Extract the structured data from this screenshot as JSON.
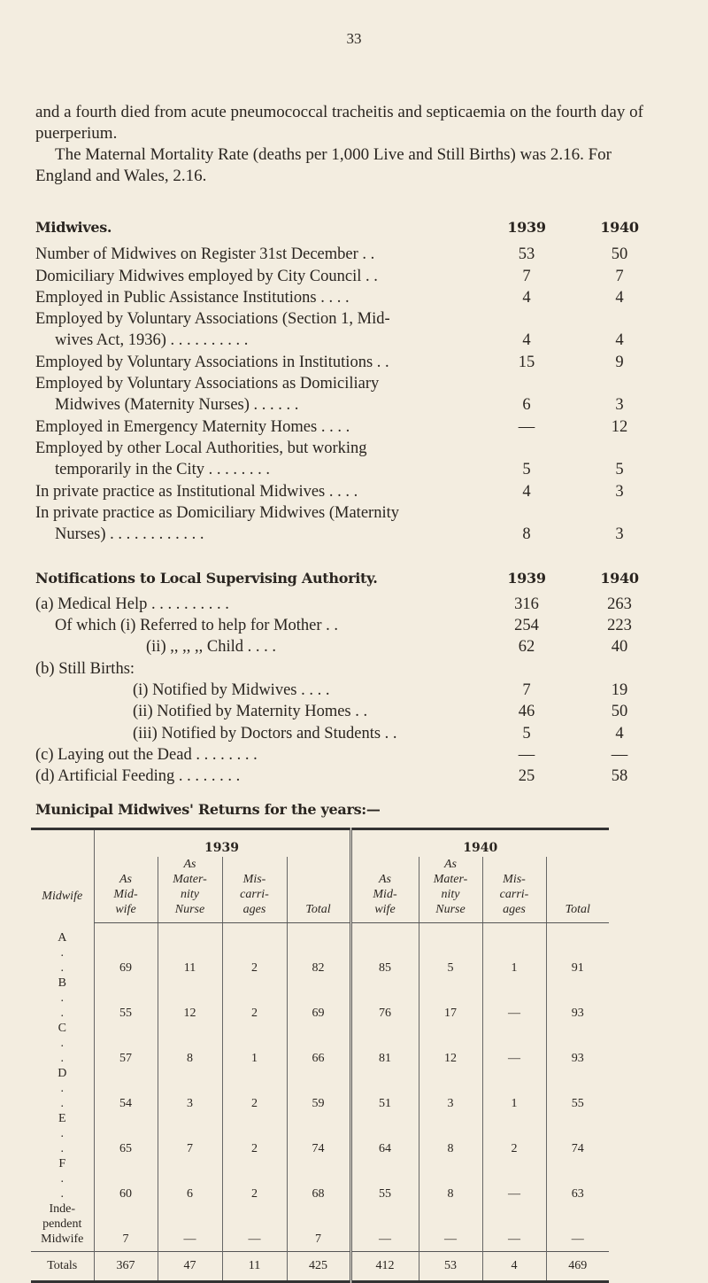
{
  "page_number": "33",
  "intro": [
    "and a fourth died from acute pneumococcal tracheitis and septicaemia on the fourth day of puerperium.",
    "The Maternal Mortality Rate (deaths per 1,000 Live and Still Births) was 2.16. For England and Wales, 2.16."
  ],
  "midwives": {
    "title": "Midwives.",
    "years": [
      "1939",
      "1940"
    ],
    "rows": [
      {
        "label": [
          "Number of Midwives on Register 31st December . ."
        ],
        "v1939": "53",
        "v1940": "50"
      },
      {
        "label": [
          "Domiciliary Midwives employed by City Council . ."
        ],
        "v1939": "7",
        "v1940": "7"
      },
      {
        "label": [
          "Employed in Public Assistance Institutions . . . ."
        ],
        "v1939": "4",
        "v1940": "4"
      },
      {
        "label": [
          "Employed by Voluntary Associations (Section 1, Mid-",
          "wives Act, 1936) . . . . . . . . . ."
        ],
        "v1939": "4",
        "v1940": "4"
      },
      {
        "label": [
          "Employed by Voluntary Associations in Institutions . ."
        ],
        "v1939": "15",
        "v1940": "9"
      },
      {
        "label": [
          "Employed by Voluntary Associations as Domiciliary",
          "Midwives (Maternity Nurses) . . . . . ."
        ],
        "v1939": "6",
        "v1940": "3"
      },
      {
        "label": [
          "Employed in Emergency Maternity Homes . . . ."
        ],
        "v1939": "—",
        "v1940": "12"
      },
      {
        "label": [
          "Employed by other Local Authorities, but working",
          "temporarily in the City . . . . . . . ."
        ],
        "v1939": "5",
        "v1940": "5"
      },
      {
        "label": [
          "In private practice as Institutional Midwives . . . ."
        ],
        "v1939": "4",
        "v1940": "3"
      },
      {
        "label": [
          "In private practice as Domiciliary Midwives (Maternity",
          "Nurses) . . . . . . . . . . . ."
        ],
        "v1939": "8",
        "v1940": "3"
      }
    ]
  },
  "notifications": {
    "title": "Notifications to Local Supervising Authority.",
    "years": [
      "1939",
      "1940"
    ],
    "rows": [
      {
        "label": "(a) Medical Help . . . . . . . . . .",
        "indent": 0,
        "v1939": "316",
        "v1940": "263"
      },
      {
        "label": "Of which (i) Referred to help for Mother . .",
        "indent": 1,
        "v1939": "254",
        "v1940": "223"
      },
      {
        "label": "(ii) ,, ,, ,, Child . . . .",
        "indent": 2,
        "v1939": "62",
        "v1940": "40"
      },
      {
        "label": "(b) Still Births:",
        "indent": 0,
        "v1939": "",
        "v1940": ""
      },
      {
        "label": "(i) Notified by Midwives . . . .",
        "indent": 3,
        "v1939": "7",
        "v1940": "19"
      },
      {
        "label": "(ii) Notified by Maternity Homes . .",
        "indent": 3,
        "v1939": "46",
        "v1940": "50"
      },
      {
        "label": "(iii) Notified by Doctors and Students . .",
        "indent": 3,
        "v1939": "5",
        "v1940": "4"
      },
      {
        "label": "(c) Laying out the Dead . . . . . . . .",
        "indent": 0,
        "v1939": "—",
        "v1940": "—"
      },
      {
        "label": "(d) Artificial Feeding . . . . . . . .",
        "indent": 0,
        "v1939": "25",
        "v1940": "58"
      }
    ]
  },
  "returns": {
    "title": "Municipal Midwives' Returns for the years:—",
    "years": [
      "1939",
      "1940"
    ],
    "headers": [
      "Midwife",
      "As Mid- wife",
      "As Mater- nity Nurse",
      "Mis- carri- ages",
      "Total"
    ],
    "rows": [
      [
        "A . .",
        "69",
        "11",
        "2",
        "82",
        "85",
        "5",
        "1",
        "91"
      ],
      [
        "B . .",
        "55",
        "12",
        "2",
        "69",
        "76",
        "17",
        "—",
        "93"
      ],
      [
        "C . .",
        "57",
        "8",
        "1",
        "66",
        "81",
        "12",
        "—",
        "93"
      ],
      [
        "D . .",
        "54",
        "3",
        "2",
        "59",
        "51",
        "3",
        "1",
        "55"
      ],
      [
        "E . .",
        "65",
        "7",
        "2",
        "74",
        "64",
        "8",
        "2",
        "74"
      ],
      [
        "F . .",
        "60",
        "6",
        "2",
        "68",
        "55",
        "8",
        "—",
        "63"
      ],
      [
        "Inde- pendent Midwife",
        "7",
        "—",
        "—",
        "7",
        "—",
        "—",
        "—",
        "—"
      ]
    ],
    "totals": [
      "Totals",
      "367",
      "47",
      "11",
      "425",
      "412",
      "53",
      "4",
      "469"
    ]
  }
}
